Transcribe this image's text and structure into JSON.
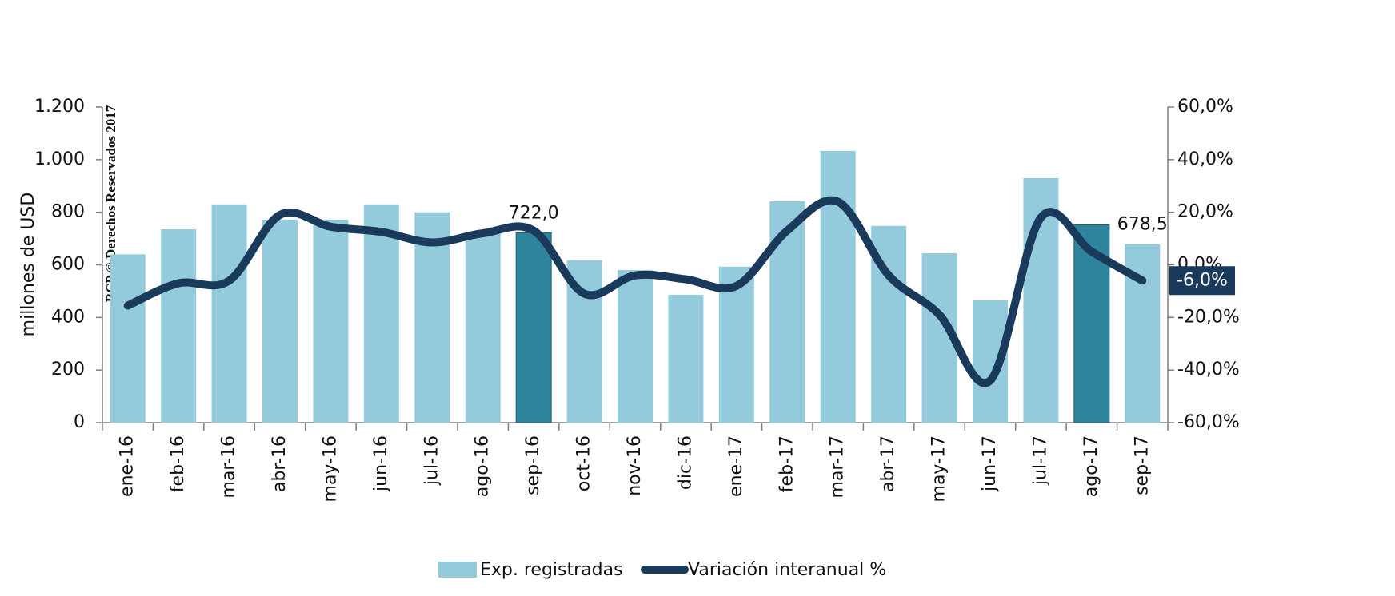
{
  "chart_data": {
    "type": "bar_line",
    "watermark": "BCP © Derechos Reservados 2017",
    "ylabel": "millones de USD",
    "categories": [
      "ene-16",
      "feb-16",
      "mar-16",
      "abr-16",
      "may-16",
      "jun-16",
      "jul-16",
      "ago-16",
      "sep-16",
      "oct-16",
      "nov-16",
      "dic-16",
      "ene-17",
      "feb-17",
      "mar-17",
      "abr-17",
      "may-17",
      "jun-17",
      "jul-17",
      "ago-17",
      "sep-17"
    ],
    "series": [
      {
        "name": "Exp. registradas",
        "color": "#93cbdc",
        "bar_colors": [
          "#93cbdc",
          "#93cbdc",
          "#93cbdc",
          "#93cbdc",
          "#93cbdc",
          "#93cbdc",
          "#93cbdc",
          "#93cbdc",
          "#2e849c",
          "#93cbdc",
          "#93cbdc",
          "#93cbdc",
          "#93cbdc",
          "#93cbdc",
          "#93cbdc",
          "#93cbdc",
          "#93cbdc",
          "#93cbdc",
          "#93cbdc",
          "#2e849c",
          "#93cbdc"
        ],
        "values": [
          640,
          735,
          830,
          772,
          772,
          830,
          800,
          718,
          722.0,
          617,
          580,
          486,
          593,
          842,
          1033,
          748,
          644,
          465,
          930,
          752,
          678.5
        ],
        "value_labels": [
          null,
          null,
          null,
          null,
          null,
          null,
          null,
          null,
          "722,0",
          null,
          null,
          null,
          null,
          null,
          null,
          null,
          null,
          null,
          null,
          null,
          "678,5"
        ]
      },
      {
        "name": "Variación interanual %",
        "color": "#1a3a5c",
        "axis": "y2",
        "values": [
          -15.5,
          -7,
          -6,
          19,
          14.5,
          12.5,
          8.5,
          12,
          13,
          -11,
          -4,
          -5.5,
          -8,
          13,
          24,
          -4,
          -19,
          -44,
          18,
          5,
          -6.0
        ],
        "value_labels": [
          null,
          null,
          null,
          null,
          null,
          null,
          null,
          null,
          null,
          null,
          null,
          null,
          null,
          null,
          null,
          null,
          null,
          null,
          null,
          null,
          "-6,0%"
        ]
      }
    ],
    "ylim": [
      0,
      1200
    ],
    "yticks": [
      0,
      200,
      400,
      600,
      800,
      {
        "value": 1000,
        "label": "1.000"
      },
      {
        "value": 1200,
        "label": "1.200"
      }
    ],
    "y2lim": [
      -60,
      60
    ],
    "y2ticks": [
      {
        "value": -60,
        "label": "-60,0%"
      },
      {
        "value": -40,
        "label": "-40,0%"
      },
      {
        "value": -20,
        "label": "-20,0%"
      },
      {
        "value": 0,
        "label": "0,0%"
      },
      {
        "value": 20,
        "label": "20,0%"
      },
      {
        "value": 40,
        "label": "40,0%"
      },
      {
        "value": 60,
        "label": "60,0%"
      }
    ],
    "legend": "bottom"
  }
}
